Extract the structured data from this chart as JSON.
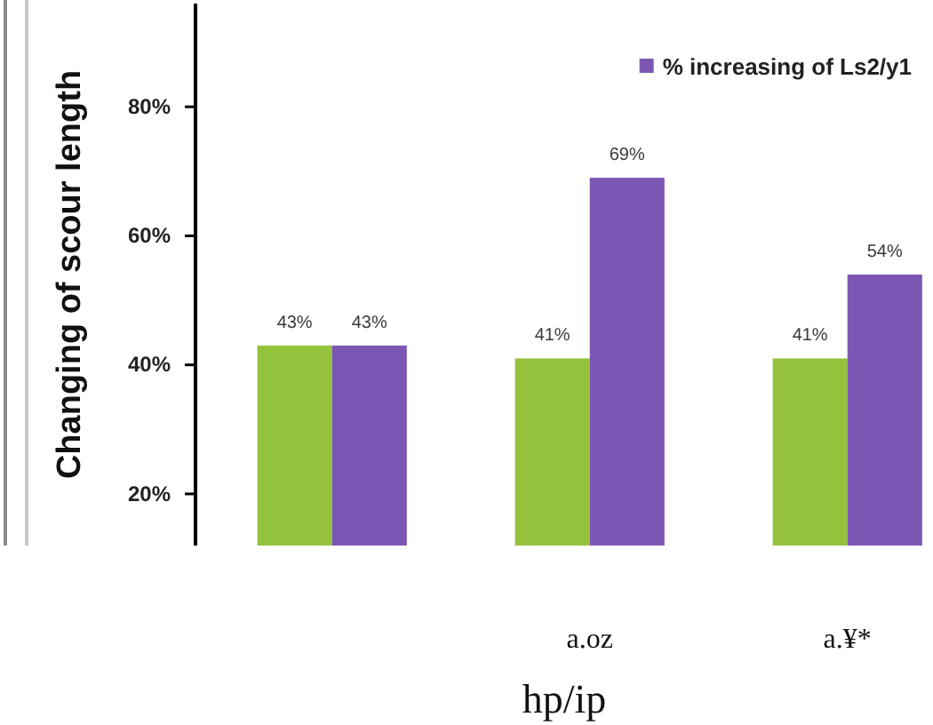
{
  "chart_data": {
    "type": "bar",
    "ylabel": "Changing of scour length",
    "xlabel": "hp/ip",
    "categories": [
      null,
      "a.oz",
      "a.¥*"
    ],
    "series": [
      {
        "color": "#94c23c",
        "values": [
          43,
          41,
          41
        ],
        "value_labels": [
          "43%",
          "41%",
          "41%"
        ]
      },
      {
        "name": "% increasing of Ls2/y1",
        "color": "#7c56b3",
        "values": [
          43,
          69,
          54
        ],
        "value_labels": [
          "43%",
          "69%",
          "54%"
        ]
      }
    ],
    "ylim": [
      12,
      96
    ],
    "yticks": [
      {
        "value": 20,
        "label": "20%"
      },
      {
        "value": 40,
        "label": "40%"
      },
      {
        "value": 60,
        "label": "60%"
      },
      {
        "value": 80,
        "label": "80%"
      }
    ],
    "legend": "top right"
  }
}
